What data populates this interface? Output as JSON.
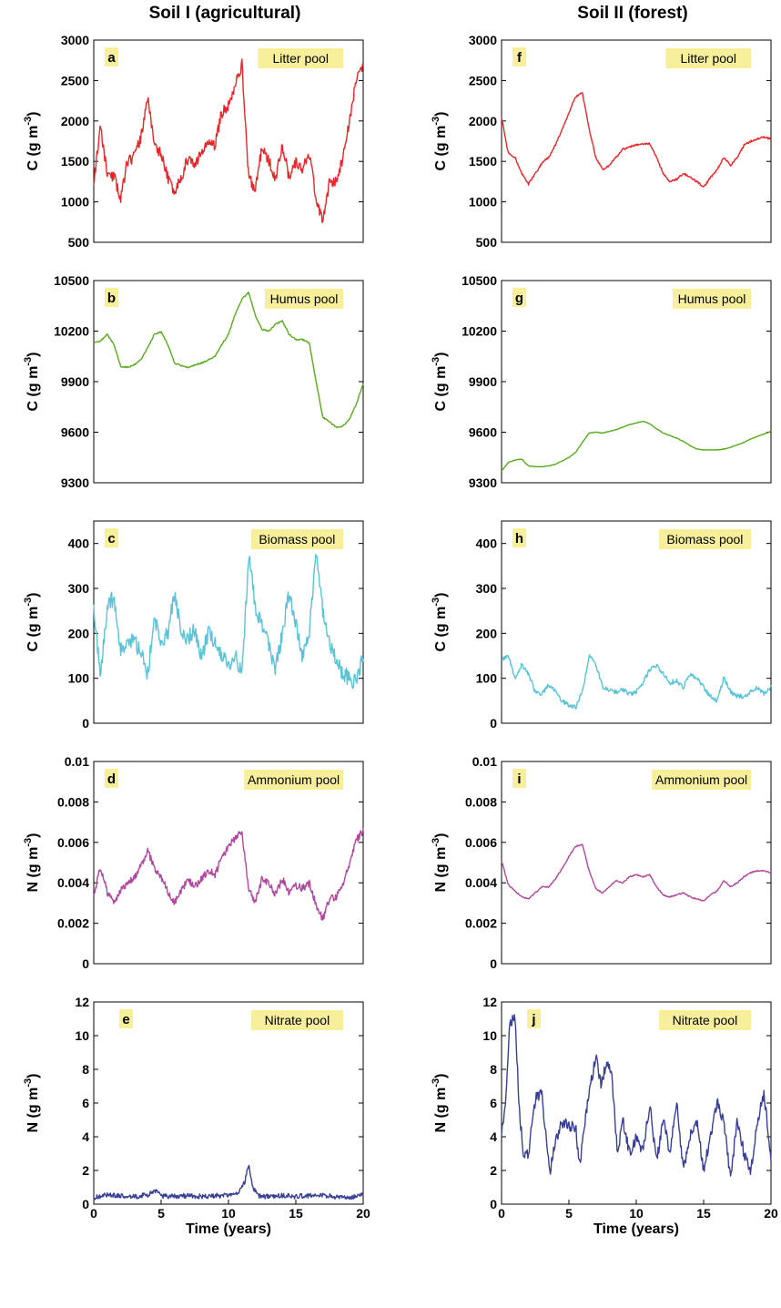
{
  "figure": {
    "columns": [
      {
        "title": "Soil I (agricultural)"
      },
      {
        "title": "Soil II (forest)"
      }
    ]
  },
  "chart_data": [
    {
      "type": "line",
      "panel_letter": "a",
      "column": 0,
      "row": 0,
      "pool_label": "Litter pool",
      "ylabel": "C (g m-3)",
      "color": "#e8262a",
      "ylim": [
        500,
        3000
      ],
      "yticks": [
        500,
        1000,
        1500,
        2000,
        2500,
        3000
      ],
      "xlim": [
        0,
        20
      ],
      "xticks": [],
      "x": [
        0,
        0.5,
        1,
        1.5,
        2,
        2.5,
        3,
        3.5,
        4,
        4.5,
        5,
        5.5,
        6,
        6.5,
        7,
        7.5,
        8,
        8.5,
        9,
        9.5,
        10,
        10.5,
        11,
        11.5,
        12,
        12.5,
        13,
        13.5,
        14,
        14.5,
        15,
        15.5,
        16,
        16.5,
        17,
        17.5,
        18,
        18.5,
        19,
        19.5,
        20
      ],
      "y": [
        1250,
        1900,
        1350,
        1300,
        1050,
        1500,
        1550,
        1800,
        2300,
        1700,
        1600,
        1300,
        1100,
        1300,
        1550,
        1450,
        1600,
        1750,
        1700,
        2100,
        2200,
        2450,
        2700,
        1300,
        1150,
        1700,
        1500,
        1300,
        1700,
        1300,
        1500,
        1400,
        1600,
        1050,
        750,
        1250,
        1250,
        1550,
        2000,
        2550,
        2650
      ],
      "noise": 70,
      "seed": 11
    },
    {
      "type": "line",
      "panel_letter": "b",
      "column": 0,
      "row": 1,
      "pool_label": "Humus pool",
      "ylabel": "C (g m-3)",
      "color": "#5aaa1f",
      "ylim": [
        9300,
        10500
      ],
      "yticks": [
        9300,
        9600,
        9900,
        10200,
        10500
      ],
      "xlim": [
        0,
        20
      ],
      "xticks": [],
      "x": [
        0,
        0.5,
        1,
        1.5,
        2,
        2.5,
        3,
        3.5,
        4,
        4.5,
        5,
        5.5,
        6,
        6.5,
        7,
        7.5,
        8,
        8.5,
        9,
        9.5,
        10,
        10.5,
        11,
        11.5,
        12,
        12.5,
        13,
        13.5,
        14,
        14.5,
        15,
        15.5,
        16,
        16.5,
        17,
        17.5,
        18,
        18.5,
        19,
        19.5,
        20
      ],
      "y": [
        10130,
        10140,
        10180,
        10120,
        9990,
        9985,
        10000,
        10030,
        10100,
        10180,
        10195,
        10120,
        10010,
        9995,
        9985,
        10000,
        10010,
        10030,
        10050,
        10120,
        10180,
        10300,
        10390,
        10430,
        10290,
        10210,
        10200,
        10240,
        10260,
        10180,
        10150,
        10150,
        10130,
        9900,
        9690,
        9660,
        9630,
        9635,
        9680,
        9770,
        9890
      ],
      "noise": 4,
      "seed": 3
    },
    {
      "type": "line",
      "panel_letter": "c",
      "column": 0,
      "row": 2,
      "pool_label": "Biomass pool",
      "ylabel": "C (g m-3)",
      "color": "#5bc3d6",
      "ylim": [
        0,
        450
      ],
      "yticks": [
        0,
        100,
        200,
        300,
        400
      ],
      "xlim": [
        0,
        20
      ],
      "xticks": [],
      "x": [
        0,
        0.5,
        1,
        1.5,
        2,
        2.5,
        3,
        3.5,
        4,
        4.5,
        5,
        5.5,
        6,
        6.5,
        7,
        7.5,
        8,
        8.5,
        9,
        9.5,
        10,
        10.5,
        11,
        11.5,
        12,
        12.5,
        13,
        13.5,
        14,
        14.5,
        15,
        15.5,
        16,
        16.5,
        17,
        17.5,
        18,
        18.5,
        19,
        19.5,
        20
      ],
      "y": [
        250,
        110,
        260,
        280,
        160,
        190,
        180,
        160,
        110,
        230,
        180,
        200,
        290,
        200,
        190,
        210,
        150,
        200,
        180,
        150,
        130,
        150,
        110,
        370,
        260,
        220,
        170,
        120,
        200,
        290,
        220,
        150,
        200,
        380,
        250,
        180,
        140,
        110,
        100,
        90,
        150
      ],
      "noise": 18,
      "seed": 7
    },
    {
      "type": "line",
      "panel_letter": "d",
      "column": 0,
      "row": 3,
      "pool_label": "Ammonium pool",
      "ylabel": "N (g m-3)",
      "color": "#b0489e",
      "ylim": [
        0,
        0.01
      ],
      "yticks": [
        0,
        0.002,
        0.004,
        0.006,
        0.008,
        0.01
      ],
      "xlim": [
        0,
        20
      ],
      "xticks": [],
      "x": [
        0,
        0.5,
        1,
        1.5,
        2,
        2.5,
        3,
        3.5,
        4,
        4.5,
        5,
        5.5,
        6,
        6.5,
        7,
        7.5,
        8,
        8.5,
        9,
        9.5,
        10,
        10.5,
        11,
        11.5,
        12,
        12.5,
        13,
        13.5,
        14,
        14.5,
        15,
        15.5,
        16,
        16.5,
        17,
        17.5,
        18,
        18.5,
        19,
        19.5,
        20
      ],
      "y": [
        0.0033,
        0.0048,
        0.0035,
        0.0031,
        0.0036,
        0.004,
        0.0042,
        0.0048,
        0.0056,
        0.0047,
        0.0043,
        0.0036,
        0.003,
        0.0036,
        0.0042,
        0.0038,
        0.0042,
        0.0046,
        0.0044,
        0.0052,
        0.0058,
        0.0062,
        0.0065,
        0.0036,
        0.0031,
        0.0042,
        0.004,
        0.0034,
        0.0042,
        0.0035,
        0.0039,
        0.0037,
        0.004,
        0.0029,
        0.0022,
        0.0032,
        0.0033,
        0.004,
        0.005,
        0.0061,
        0.0066
      ],
      "noise": 0.00018,
      "seed": 5
    },
    {
      "type": "line",
      "panel_letter": "e",
      "column": 0,
      "row": 4,
      "pool_label": "Nitrate pool",
      "ylabel": "N (g m-3)",
      "xlabel": "Time (years)",
      "color": "#3a3f96",
      "ylim": [
        0,
        12
      ],
      "yticks": [
        0,
        2,
        4,
        6,
        8,
        10,
        12
      ],
      "xlim": [
        0,
        20
      ],
      "xticks": [
        0,
        5,
        10,
        15,
        20
      ],
      "x": [
        0,
        1,
        2,
        3,
        4,
        4.5,
        5,
        6,
        7,
        8,
        9,
        10,
        10.8,
        11.2,
        11.5,
        11.8,
        12.2,
        13,
        14,
        15,
        16,
        17,
        18,
        19,
        20
      ],
      "y": [
        0.4,
        0.55,
        0.5,
        0.45,
        0.55,
        0.8,
        0.5,
        0.45,
        0.5,
        0.45,
        0.5,
        0.5,
        0.7,
        1.3,
        2.4,
        1.0,
        0.5,
        0.45,
        0.5,
        0.45,
        0.5,
        0.55,
        0.4,
        0.4,
        0.55
      ],
      "noise": 0.15,
      "seed": 9
    },
    {
      "type": "line",
      "panel_letter": "f",
      "column": 1,
      "row": 0,
      "pool_label": "Litter pool",
      "ylabel": "C (g m-3)",
      "color": "#e8262a",
      "ylim": [
        500,
        3000
      ],
      "yticks": [
        500,
        1000,
        1500,
        2000,
        2500,
        3000
      ],
      "xlim": [
        0,
        20
      ],
      "xticks": [],
      "x": [
        0,
        0.5,
        1,
        1.5,
        2,
        2.5,
        3,
        3.5,
        4,
        4.5,
        5,
        5.5,
        6,
        6.5,
        7,
        7.5,
        8,
        8.5,
        9,
        9.5,
        10,
        10.5,
        11,
        11.5,
        12,
        12.5,
        13,
        13.5,
        14,
        14.5,
        15,
        15.5,
        16,
        16.5,
        17,
        17.5,
        18,
        18.5,
        19,
        19.5,
        20
      ],
      "y": [
        2050,
        1600,
        1550,
        1350,
        1220,
        1350,
        1480,
        1550,
        1700,
        1900,
        2100,
        2300,
        2350,
        1900,
        1550,
        1400,
        1450,
        1550,
        1650,
        1680,
        1700,
        1720,
        1720,
        1550,
        1350,
        1250,
        1280,
        1350,
        1300,
        1250,
        1180,
        1300,
        1400,
        1550,
        1450,
        1550,
        1700,
        1750,
        1780,
        1800,
        1780
      ],
      "noise": 12,
      "seed": 13
    },
    {
      "type": "line",
      "panel_letter": "g",
      "column": 1,
      "row": 1,
      "pool_label": "Humus pool",
      "ylabel": "C (g m-3)",
      "color": "#5aaa1f",
      "ylim": [
        9300,
        10500
      ],
      "yticks": [
        9300,
        9600,
        9900,
        10200,
        10500
      ],
      "xlim": [
        0,
        20
      ],
      "xticks": [],
      "x": [
        0,
        0.5,
        1,
        1.5,
        2,
        2.5,
        3,
        3.5,
        4,
        4.5,
        5,
        5.5,
        6,
        6.5,
        7,
        7.5,
        8,
        8.5,
        9,
        9.5,
        10,
        10.5,
        11,
        11.5,
        12,
        12.5,
        13,
        13.5,
        14,
        14.5,
        15,
        15.5,
        16,
        16.5,
        17,
        17.5,
        18,
        18.5,
        19,
        19.5,
        20
      ],
      "y": [
        9370,
        9420,
        9435,
        9440,
        9400,
        9395,
        9395,
        9400,
        9410,
        9430,
        9450,
        9480,
        9540,
        9595,
        9600,
        9595,
        9605,
        9615,
        9630,
        9645,
        9655,
        9665,
        9650,
        9620,
        9595,
        9580,
        9565,
        9545,
        9520,
        9500,
        9495,
        9495,
        9495,
        9500,
        9510,
        9525,
        9540,
        9560,
        9575,
        9590,
        9605
      ],
      "noise": 1.5,
      "seed": 17
    },
    {
      "type": "line",
      "panel_letter": "h",
      "column": 1,
      "row": 2,
      "pool_label": "Biomass pool",
      "ylabel": "C (g m-3)",
      "color": "#5bc3d6",
      "ylim": [
        0,
        450
      ],
      "yticks": [
        0,
        100,
        200,
        300,
        400
      ],
      "xlim": [
        0,
        20
      ],
      "xticks": [],
      "x": [
        0,
        0.5,
        1,
        1.5,
        2,
        2.5,
        3,
        3.5,
        4,
        4.5,
        5,
        5.5,
        6,
        6.5,
        7,
        7.5,
        8,
        8.5,
        9,
        9.5,
        10,
        10.5,
        11,
        11.5,
        12,
        12.5,
        13,
        13.5,
        14,
        14.5,
        15,
        15.5,
        16,
        16.5,
        17,
        17.5,
        18,
        18.5,
        19,
        19.5,
        20
      ],
      "y": [
        140,
        150,
        100,
        130,
        110,
        70,
        65,
        85,
        70,
        50,
        40,
        35,
        70,
        150,
        130,
        80,
        75,
        70,
        75,
        65,
        70,
        90,
        120,
        130,
        110,
        90,
        95,
        80,
        110,
        100,
        80,
        60,
        50,
        100,
        70,
        60,
        60,
        70,
        80,
        65,
        80
      ],
      "noise": 5,
      "seed": 19
    },
    {
      "type": "line",
      "panel_letter": "i",
      "column": 1,
      "row": 3,
      "pool_label": "Ammonium pool",
      "ylabel": "N (g m-3)",
      "color": "#b0489e",
      "ylim": [
        0,
        0.01
      ],
      "yticks": [
        0,
        0.002,
        0.004,
        0.006,
        0.008,
        0.01
      ],
      "xlim": [
        0,
        20
      ],
      "xticks": [],
      "x": [
        0,
        0.5,
        1,
        1.5,
        2,
        2.5,
        3,
        3.5,
        4,
        4.5,
        5,
        5.5,
        6,
        6.5,
        7,
        7.5,
        8,
        8.5,
        9,
        9.5,
        10,
        10.5,
        11,
        11.5,
        12,
        12.5,
        13,
        13.5,
        14,
        14.5,
        15,
        15.5,
        16,
        16.5,
        17,
        17.5,
        18,
        18.5,
        19,
        19.5,
        20
      ],
      "y": [
        0.0051,
        0.0039,
        0.0036,
        0.0033,
        0.0032,
        0.0035,
        0.0038,
        0.0038,
        0.0042,
        0.0047,
        0.0053,
        0.0058,
        0.0059,
        0.0046,
        0.0037,
        0.0035,
        0.0038,
        0.0041,
        0.004,
        0.0043,
        0.0044,
        0.0043,
        0.0044,
        0.0038,
        0.0034,
        0.0033,
        0.0034,
        0.0035,
        0.0033,
        0.0032,
        0.0031,
        0.0034,
        0.0036,
        0.0041,
        0.0038,
        0.004,
        0.0043,
        0.0045,
        0.0046,
        0.0046,
        0.0045
      ],
      "noise": 3e-05,
      "seed": 23
    },
    {
      "type": "line",
      "panel_letter": "j",
      "column": 1,
      "row": 4,
      "pool_label": "Nitrate pool",
      "ylabel": "N (g m-3)",
      "xlabel": "Time (years)",
      "color": "#3a3f96",
      "ylim": [
        0,
        12
      ],
      "yticks": [
        0,
        2,
        4,
        6,
        8,
        10,
        12
      ],
      "xlim": [
        0,
        20
      ],
      "xticks": [
        0,
        5,
        10,
        15,
        20
      ],
      "x": [
        0,
        0.3,
        0.6,
        1,
        1.3,
        1.6,
        2,
        2.3,
        2.6,
        3,
        3.3,
        3.6,
        4,
        4.5,
        5,
        5.5,
        5.8,
        6.2,
        6.6,
        7,
        7.4,
        7.8,
        8.2,
        8.6,
        9,
        9.5,
        10,
        10.5,
        11,
        11.5,
        12,
        12.5,
        13,
        13.5,
        14,
        14.5,
        15,
        15.5,
        16,
        16.5,
        17,
        17.5,
        18,
        18.5,
        19,
        19.5,
        20
      ],
      "y": [
        4,
        6,
        10.8,
        11,
        6,
        3,
        3,
        5,
        6.5,
        6.5,
        4,
        2,
        3.8,
        4.8,
        4.7,
        4.5,
        2.2,
        5,
        7,
        8.8,
        7,
        8.5,
        7.5,
        3,
        5,
        3,
        4,
        3,
        6,
        2.5,
        5,
        3,
        6,
        2,
        4,
        5,
        2,
        4,
        6,
        5,
        1.5,
        5,
        3,
        2,
        5,
        6.5,
        2.5
      ],
      "noise": 0.35,
      "seed": 29
    }
  ]
}
